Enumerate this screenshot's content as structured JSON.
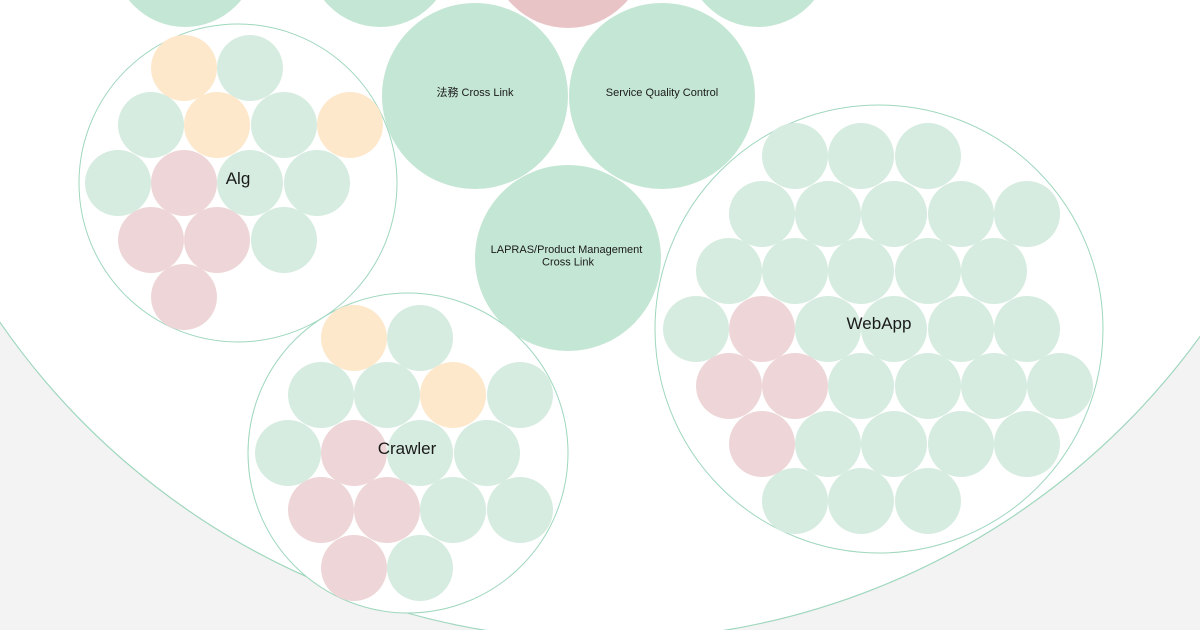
{
  "colors": {
    "background": "#f3f3f3",
    "outline": "#9fd7bd",
    "team_fill": "#c4e6d5",
    "green": "#d6ece0",
    "peach": "#fde8cc",
    "pink": "#eed6d8"
  },
  "teams": [
    {
      "id": "houmu",
      "lines": [
        "法務 Cross Link"
      ]
    },
    {
      "id": "sqc",
      "lines": [
        "Service Quality Control"
      ]
    },
    {
      "id": "lapras",
      "lines": [
        "LAPRAS/Product Management",
        "Cross Link"
      ]
    }
  ],
  "groups": [
    {
      "id": "alg",
      "label": "Alg"
    },
    {
      "id": "crawler",
      "label": "Crawler"
    },
    {
      "id": "webapp",
      "label": "WebApp"
    }
  ]
}
